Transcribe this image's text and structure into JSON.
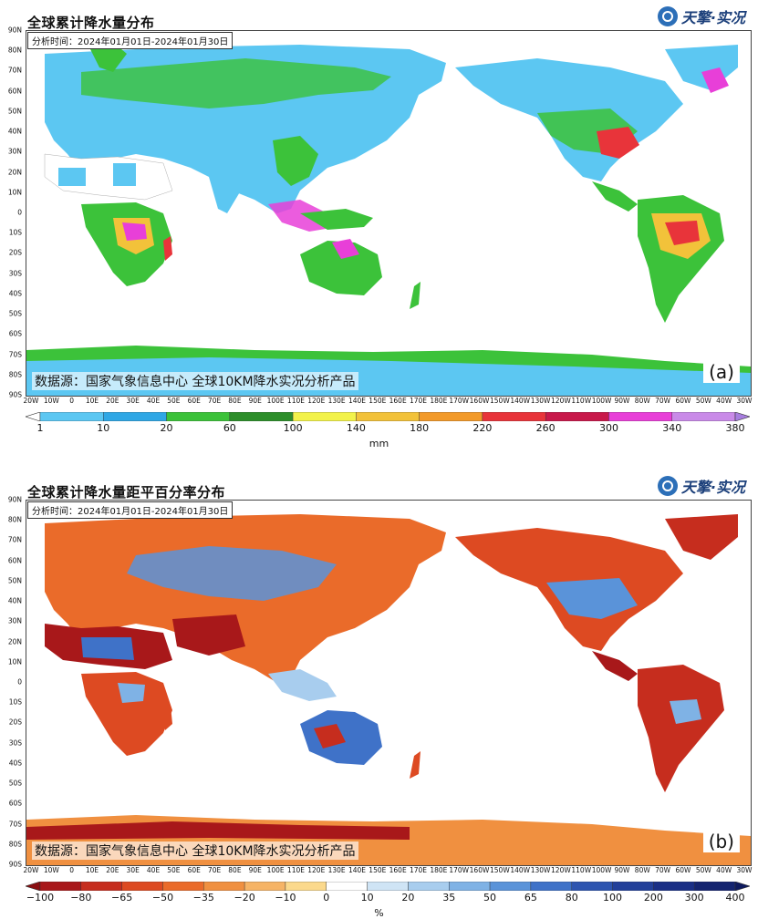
{
  "panels": [
    {
      "id": "a",
      "title": "全球累计降水量分布",
      "period": "分析时间：2024年01月01日-2024年01月30日",
      "brand": "天擎·实况",
      "source": "数据源：国家气象信息中心 全球10KM降水实况分析产品",
      "letter": "(a)",
      "unit": "mm",
      "colorbar": {
        "ticks": [
          "1",
          "10",
          "20",
          "60",
          "100",
          "140",
          "180",
          "220",
          "260",
          "300",
          "340",
          "380"
        ],
        "colors": [
          "#ffffff",
          "#5cc7f2",
          "#2fa7e5",
          "#3cc23a",
          "#2d8e2a",
          "#f2f24a",
          "#f2c23a",
          "#f29a2a",
          "#e8343a",
          "#c8184a",
          "#e83fd8",
          "#c98ae8",
          "#a77ddf"
        ]
      }
    },
    {
      "id": "b",
      "title": "全球累计降水量距平百分率分布",
      "period": "分析时间：2024年01月01日-2024年01月30日",
      "brand": "天擎·实况",
      "source": "数据源：国家气象信息中心 全球10KM降水实况分析产品",
      "letter": "(b)",
      "unit": "%",
      "colorbar": {
        "ticks": [
          "−100",
          "−80",
          "−65",
          "−50",
          "−35",
          "−20",
          "−10",
          "0",
          "10",
          "20",
          "35",
          "50",
          "65",
          "80",
          "100",
          "200",
          "300",
          "400"
        ],
        "colors": [
          "#8a0f12",
          "#a8181a",
          "#c62d1e",
          "#dd4a22",
          "#ea6b2a",
          "#f09040",
          "#f6b466",
          "#fbd98c",
          "#ffffff",
          "#cfe4f5",
          "#a8cdee",
          "#7fb2e5",
          "#5a93d9",
          "#3f72c8",
          "#2e55b0",
          "#23409a",
          "#1a2f86",
          "#142470",
          "#0e1a5e"
        ]
      }
    }
  ],
  "lat_labels": [
    "90N",
    "80N",
    "70N",
    "60N",
    "50N",
    "40N",
    "30N",
    "20N",
    "10N",
    "0",
    "10S",
    "20S",
    "30S",
    "40S",
    "50S",
    "60S",
    "70S",
    "80S",
    "90S"
  ],
  "lon_labels": [
    "20W",
    "10W",
    "0",
    "10E",
    "20E",
    "30E",
    "40E",
    "50E",
    "60E",
    "70E",
    "80E",
    "90E",
    "100E",
    "110E",
    "120E",
    "130E",
    "140E",
    "150E",
    "160E",
    "170E",
    "180E",
    "170W",
    "160W",
    "150W",
    "140W",
    "130W",
    "120W",
    "110W",
    "100W",
    "90W",
    "80W",
    "70W",
    "60W",
    "50W",
    "40W",
    "30W"
  ]
}
